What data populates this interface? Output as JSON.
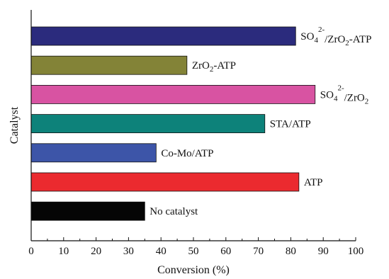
{
  "chart_data": {
    "type": "bar",
    "orientation": "horizontal",
    "xlabel": "Conversion (%)",
    "ylabel": "Catalyst",
    "xlim": [
      0,
      100
    ],
    "xticks": [
      0,
      10,
      20,
      30,
      40,
      50,
      60,
      70,
      80,
      90,
      100
    ],
    "grid": false,
    "categories": [
      "SO4 2-/ZrO2-ATP",
      "ZrO2-ATP",
      "SO4 2-/ZrO2",
      "STA/ATP",
      "Co-Mo/ATP",
      "ATP",
      "No catalyst"
    ],
    "values": [
      81.5,
      48,
      87.5,
      72,
      38.5,
      82.5,
      35
    ],
    "colors": [
      "#2b2b7d",
      "#838337",
      "#d853a2",
      "#0d827a",
      "#3d55a8",
      "#eb2a2f",
      "#050505"
    ],
    "labels": [
      [
        {
          "t": "SO"
        },
        {
          "t": "4",
          "sub": true
        },
        {
          "t": "2-",
          "sup": true
        },
        {
          "t": "/ZrO"
        },
        {
          "t": "2",
          "sub": true
        },
        {
          "t": "-ATP"
        }
      ],
      [
        {
          "t": "ZrO"
        },
        {
          "t": "2",
          "sub": true
        },
        {
          "t": "-ATP"
        }
      ],
      [
        {
          "t": "SO"
        },
        {
          "t": "4",
          "sub": true
        },
        {
          "t": "2-",
          "sup": true
        },
        {
          "t": "/ZrO"
        },
        {
          "t": "2",
          "sub": true
        }
      ],
      [
        {
          "t": "STA/ATP"
        }
      ],
      [
        {
          "t": "Co-Mo/ATP"
        }
      ],
      [
        {
          "t": "ATP"
        }
      ],
      [
        {
          "t": "No catalyst"
        }
      ]
    ]
  }
}
